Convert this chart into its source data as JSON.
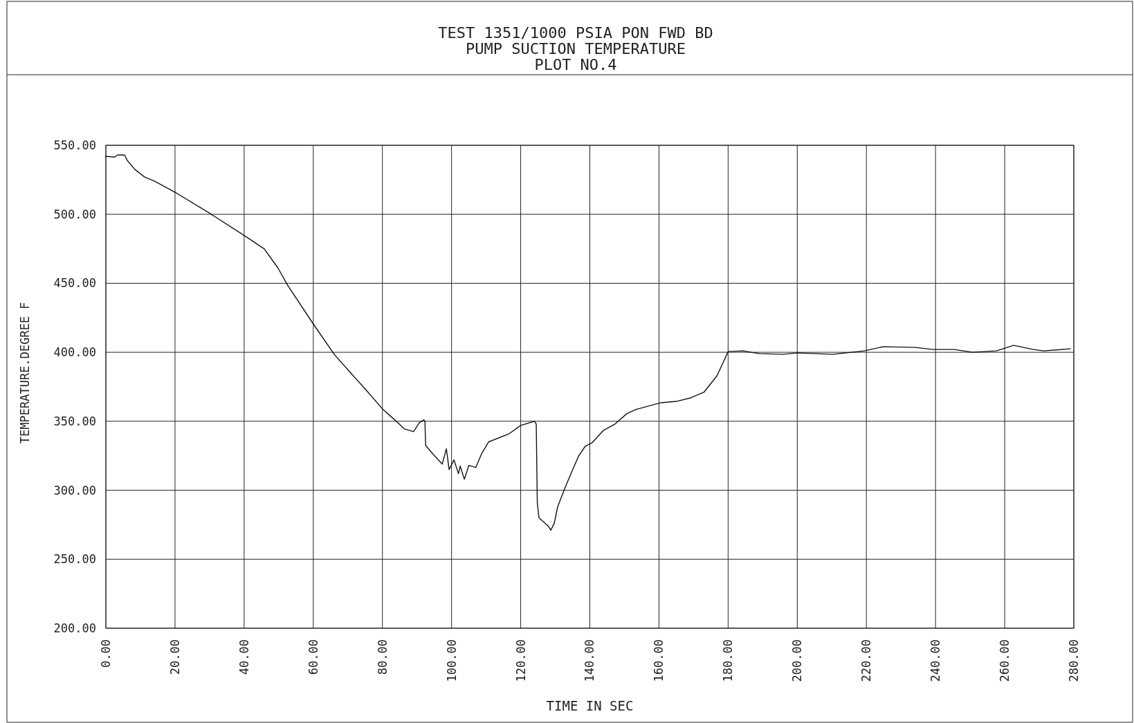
{
  "chart_data": {
    "type": "line",
    "title": "TEST 1351/1000 PSIA PON FWD BD",
    "subtitle": "PUMP SUCTION TEMPERATURE\nPLOT NO.4",
    "xlabel": "TIME IN SEC",
    "ylabel": "TEMPERATURE.DEGREE F",
    "xlim": [
      0,
      280
    ],
    "ylim": [
      200,
      550
    ],
    "xticks": [
      {
        "value": 0,
        "label": "0.00"
      },
      {
        "value": 20,
        "label": "20.00"
      },
      {
        "value": 40,
        "label": "40.00"
      },
      {
        "value": 60,
        "label": "60.00"
      },
      {
        "value": 80,
        "label": "80.00"
      },
      {
        "value": 100,
        "label": "100.00"
      },
      {
        "value": 120,
        "label": "120.00"
      },
      {
        "value": 140,
        "label": "140.00"
      },
      {
        "value": 160,
        "label": "160.00"
      },
      {
        "value": 180,
        "label": "180.00"
      },
      {
        "value": 200,
        "label": "200.00"
      },
      {
        "value": 220,
        "label": "220.00"
      },
      {
        "value": 240,
        "label": "240.00"
      },
      {
        "value": 260,
        "label": "260.00"
      },
      {
        "value": 280,
        "label": "280.00"
      }
    ],
    "yticks": [
      {
        "value": 200,
        "label": "200.00"
      },
      {
        "value": 250,
        "label": "250.00"
      },
      {
        "value": 300,
        "label": "300.00"
      },
      {
        "value": 350,
        "label": "350.00"
      },
      {
        "value": 400,
        "label": "400.00"
      },
      {
        "value": 450,
        "label": "450.00"
      },
      {
        "value": 500,
        "label": "500.00"
      },
      {
        "value": 550,
        "label": "550.00"
      }
    ],
    "grid": true,
    "marker": "none",
    "line_style": "solid",
    "series": [
      {
        "color": "#111111",
        "x": [
          0,
          2.6,
          3.4,
          5.4,
          6.2,
          8.4,
          11.2,
          14.1,
          20,
          30.5,
          39.8,
          45.8,
          49.8,
          52.6,
          60,
          66.2,
          75.5,
          80,
          84,
          86.3,
          89,
          90.7,
          92,
          92.3,
          92.5,
          94.7,
          97.3,
          98.5,
          99.3,
          100.7,
          102,
          102.5,
          103.7,
          105,
          107,
          108.7,
          110.7,
          116.7,
          120,
          124,
          124.5,
          124.8,
          125.3,
          128,
          128.7,
          129.7,
          130.7,
          132.7,
          134.7,
          136.7,
          138.7,
          140.7,
          144,
          147.3,
          150.7,
          153.3,
          160.7,
          165.3,
          169.2,
          173,
          176.8,
          180,
          184.4,
          189,
          195.9,
          200,
          210.3,
          219.4,
          224.8,
          234,
          239.3,
          245.4,
          250.7,
          257.6,
          262.6,
          268.3,
          271.3,
          279
        ],
        "values": [
          542,
          541.5,
          543,
          543,
          539,
          532.5,
          527,
          524,
          516,
          500,
          485,
          475,
          461,
          448.5,
          420.5,
          398,
          372,
          359,
          350,
          344.5,
          342.5,
          349,
          351,
          350,
          332.5,
          326,
          319,
          330,
          315,
          322,
          312,
          317.5,
          308,
          318,
          316.5,
          326.5,
          335,
          341,
          347,
          350,
          348,
          291,
          280,
          274,
          271,
          276,
          288,
          301,
          313,
          324.5,
          332,
          334.5,
          343.5,
          348,
          355.5,
          358.5,
          363.5,
          364.5,
          367,
          371,
          383,
          400.5,
          401,
          399,
          398.5,
          399.5,
          398.5,
          401,
          404,
          403.5,
          402,
          402,
          400,
          401,
          405,
          402,
          401,
          402.5
        ]
      }
    ]
  }
}
